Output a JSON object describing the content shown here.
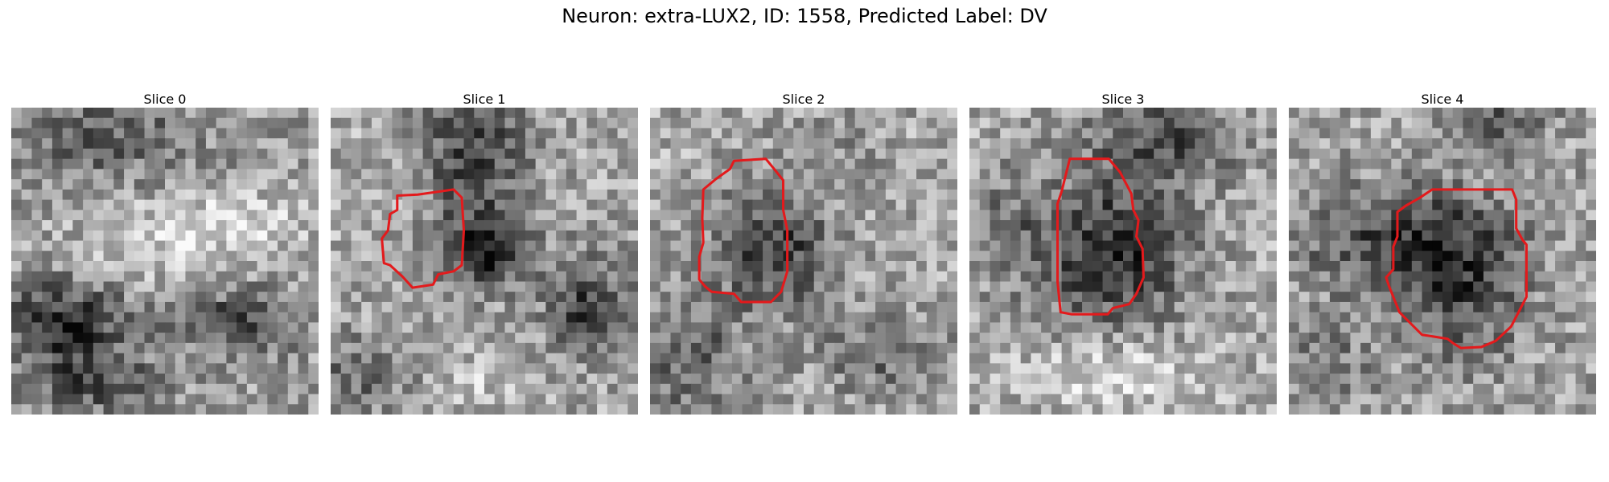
{
  "figure": {
    "title": "Neuron: extra-LUX2, ID: 1558, Predicted Label: DV"
  },
  "panels": [
    {
      "title": "Slice 0",
      "has_outline": false
    },
    {
      "title": "Slice 1",
      "has_outline": true
    },
    {
      "title": "Slice 2",
      "has_outline": true
    },
    {
      "title": "Slice 3",
      "has_outline": true
    },
    {
      "title": "Slice 4",
      "has_outline": true
    }
  ],
  "image": {
    "grid_size": 30,
    "colormap": "gray",
    "outline_color": "#e31a1c"
  }
}
